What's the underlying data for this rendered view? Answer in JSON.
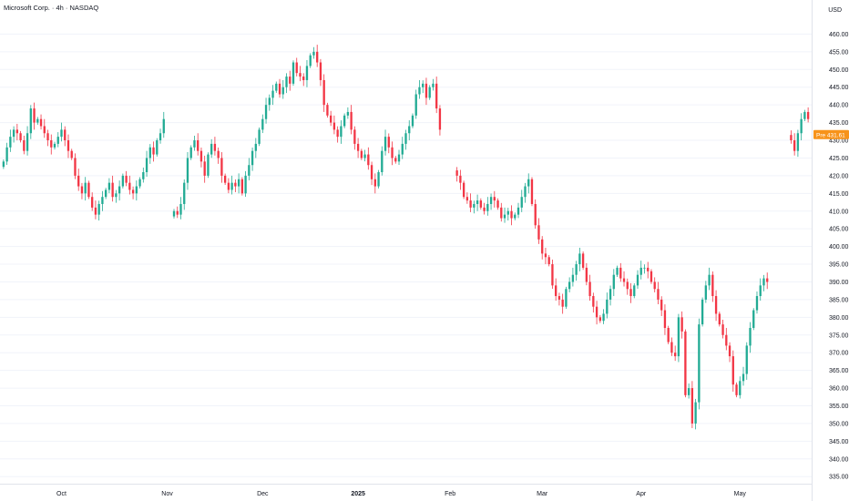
{
  "chart_data": {
    "type": "candlestick",
    "title": "Microsoft Corp. · 4h · NASDAQ",
    "currency": "USD",
    "ylim": [
      333,
      465
    ],
    "y_ticks": [
      335,
      340,
      345,
      350,
      355,
      360,
      365,
      370,
      375,
      380,
      385,
      390,
      395,
      400,
      405,
      410,
      415,
      420,
      425,
      430,
      435,
      440,
      445,
      450,
      455,
      460
    ],
    "x_ticks": [
      "Oct",
      "Nov",
      "Dec",
      "2025",
      "Feb",
      "Mar",
      "Apr",
      "May"
    ],
    "x_tick_positions_idx": [
      17,
      48,
      76,
      104,
      131,
      158,
      187,
      216
    ],
    "colors": {
      "up": "#22ab94",
      "down": "#f23645",
      "price_label": "#f7931a",
      "axis_text": "#131722",
      "grid": "#f0f3fa"
    },
    "price_label": {
      "tag": "Pre",
      "value": "431.61"
    },
    "candle_count": 225,
    "closes": [
      424,
      428,
      431,
      433,
      432,
      430,
      427,
      432,
      439,
      435,
      436,
      434,
      432,
      430,
      428,
      429,
      431,
      433,
      430,
      427,
      425,
      420,
      417,
      415,
      418,
      414,
      411,
      409,
      412,
      414,
      416,
      418,
      414,
      415,
      417,
      420,
      418,
      416,
      415,
      417,
      419,
      421,
      425,
      428,
      426,
      430,
      432,
      436,
      null,
      null,
      410,
      409,
      412,
      418,
      425,
      428,
      430,
      427,
      424,
      420,
      426,
      429,
      427,
      425,
      420,
      418,
      416,
      418,
      417,
      419,
      415,
      420,
      423,
      427,
      429,
      433,
      436,
      440,
      442,
      444,
      446,
      443,
      445,
      448,
      446,
      452,
      449,
      448,
      447,
      451,
      454,
      455,
      452,
      447,
      440,
      437,
      435,
      433,
      431,
      434,
      437,
      438,
      433,
      429,
      427,
      425,
      426,
      423,
      419,
      417,
      421,
      427,
      431,
      428,
      425,
      424,
      426,
      429,
      432,
      434,
      437,
      443,
      445,
      446,
      442,
      445,
      446,
      439,
      433,
      null,
      null,
      null,
      null,
      420,
      418,
      414,
      413,
      411,
      412,
      413,
      411,
      410,
      412,
      414,
      413,
      411,
      408,
      409,
      410,
      408,
      409,
      411,
      414,
      417,
      419,
      412,
      406,
      402,
      398,
      397,
      395,
      389,
      386,
      385,
      383,
      388,
      390,
      392,
      395,
      398,
      394,
      390,
      386,
      383,
      380,
      379,
      381,
      385,
      388,
      392,
      394,
      391,
      390,
      388,
      386,
      389,
      392,
      394,
      394,
      393,
      390,
      388,
      385,
      382,
      377,
      373,
      370,
      369,
      380,
      376,
      358,
      360,
      350,
      356,
      378,
      385,
      389,
      392,
      386,
      381,
      378,
      375,
      372,
      369,
      361,
      358,
      362,
      364,
      372,
      377,
      382,
      386,
      389,
      391,
      390,
      null,
      null,
      null,
      null,
      null,
      null,
      430,
      427,
      432,
      436,
      438,
      436
    ]
  }
}
